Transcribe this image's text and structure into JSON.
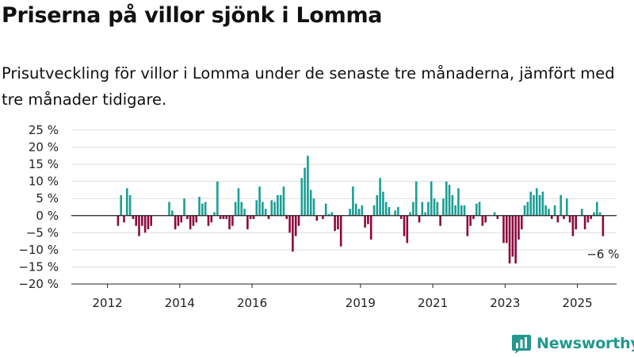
{
  "title": "Priserna på villor sjönk i Lomma",
  "subtitle": "Prisutveckling för villor i Lomma under de senaste tre månaderna, jämfört med tre månader tidigare.",
  "brand": {
    "name": "Newsworthy",
    "icon": "newsworthy-logo-icon"
  },
  "colors": {
    "positive": "#1a9e95",
    "negative": "#8c0a3d",
    "grid": "#dddddd",
    "axis": "#222222",
    "brand": "#21998f"
  },
  "chart_data": {
    "type": "bar",
    "x_start": "2011-01",
    "x_end": "2026-02",
    "ylim": [
      -20,
      25
    ],
    "y_ticks": [
      25,
      20,
      15,
      10,
      5,
      0,
      -5,
      -10,
      -15,
      -20
    ],
    "y_tick_labels": [
      "25 %",
      "20 %",
      "15 %",
      "10 %",
      "5 %",
      "0 %",
      "−5 %",
      "−10 %",
      "−15 %",
      "−20 %"
    ],
    "x_ticks": [
      "2012",
      "2014",
      "2016",
      "2019",
      "2021",
      "2023",
      "2025"
    ],
    "grid": true,
    "annotation": {
      "text": "−6 %",
      "x": "2025-09",
      "y": -6
    },
    "series": [
      {
        "values": [
          [
            "2012-04",
            -3
          ],
          [
            "2012-05",
            6
          ],
          [
            "2012-06",
            -2
          ],
          [
            "2012-07",
            8
          ],
          [
            "2012-08",
            6
          ],
          [
            "2012-09",
            -1
          ],
          [
            "2012-10",
            -3
          ],
          [
            "2012-11",
            -6
          ],
          [
            "2012-12",
            -3
          ],
          [
            "2013-01",
            -5
          ],
          [
            "2013-02",
            -4
          ],
          [
            "2013-03",
            -3
          ],
          [
            "2013-09",
            4
          ],
          [
            "2013-10",
            1.5
          ],
          [
            "2013-11",
            -4
          ],
          [
            "2013-12",
            -3
          ],
          [
            "2014-01",
            -2
          ],
          [
            "2014-02",
            5
          ],
          [
            "2014-03",
            -1
          ],
          [
            "2014-04",
            -4
          ],
          [
            "2014-05",
            -3
          ],
          [
            "2014-06",
            -2
          ],
          [
            "2014-07",
            5.5
          ],
          [
            "2014-08",
            3.5
          ],
          [
            "2014-09",
            4
          ],
          [
            "2014-10",
            -3
          ],
          [
            "2014-11",
            -2
          ],
          [
            "2014-12",
            1
          ],
          [
            "2015-01",
            10
          ],
          [
            "2015-02",
            -1
          ],
          [
            "2015-03",
            -1
          ],
          [
            "2015-04",
            -1
          ],
          [
            "2015-05",
            -4
          ],
          [
            "2015-06",
            -3
          ],
          [
            "2015-07",
            4
          ],
          [
            "2015-08",
            8
          ],
          [
            "2015-09",
            4
          ],
          [
            "2015-10",
            2
          ],
          [
            "2015-11",
            -4
          ],
          [
            "2015-12",
            -1
          ],
          [
            "2016-01",
            -1
          ],
          [
            "2016-02",
            4.5
          ],
          [
            "2016-03",
            8.5
          ],
          [
            "2016-04",
            4
          ],
          [
            "2016-05",
            2
          ],
          [
            "2016-06",
            -1
          ],
          [
            "2016-07",
            4.5
          ],
          [
            "2016-08",
            4
          ],
          [
            "2016-09",
            6
          ],
          [
            "2016-10",
            6
          ],
          [
            "2016-11",
            8.5
          ],
          [
            "2016-12",
            -1
          ],
          [
            "2017-01",
            -5
          ],
          [
            "2017-02",
            -10.5
          ],
          [
            "2017-03",
            -6
          ],
          [
            "2017-04",
            -3
          ],
          [
            "2017-05",
            11
          ],
          [
            "2017-06",
            14
          ],
          [
            "2017-07",
            17.5
          ],
          [
            "2017-08",
            7.5
          ],
          [
            "2017-09",
            5
          ],
          [
            "2017-10",
            -1.5
          ],
          [
            "2017-12",
            -1
          ],
          [
            "2018-01",
            3.5
          ],
          [
            "2018-02",
            0.5
          ],
          [
            "2018-03",
            1
          ],
          [
            "2018-04",
            -4.5
          ],
          [
            "2018-05",
            -4
          ],
          [
            "2018-06",
            -9
          ],
          [
            "2018-09",
            2
          ],
          [
            "2018-10",
            8.5
          ],
          [
            "2018-11",
            3.5
          ],
          [
            "2018-12",
            2
          ],
          [
            "2019-01",
            3
          ],
          [
            "2019-02",
            -3.5
          ],
          [
            "2019-03",
            -2.5
          ],
          [
            "2019-04",
            -7
          ],
          [
            "2019-05",
            3
          ],
          [
            "2019-06",
            6
          ],
          [
            "2019-07",
            11
          ],
          [
            "2019-08",
            7
          ],
          [
            "2019-09",
            4
          ],
          [
            "2019-10",
            2.5
          ],
          [
            "2019-12",
            1.5
          ],
          [
            "2020-01",
            2.5
          ],
          [
            "2020-02",
            -1
          ],
          [
            "2020-03",
            -6
          ],
          [
            "2020-04",
            -8
          ],
          [
            "2020-05",
            1
          ],
          [
            "2020-06",
            4
          ],
          [
            "2020-07",
            10
          ],
          [
            "2020-08",
            -2
          ],
          [
            "2020-09",
            4
          ],
          [
            "2020-10",
            1
          ],
          [
            "2020-11",
            4
          ],
          [
            "2020-12",
            10
          ],
          [
            "2021-01",
            5
          ],
          [
            "2021-02",
            4
          ],
          [
            "2021-03",
            -3
          ],
          [
            "2021-04",
            5
          ],
          [
            "2021-05",
            10
          ],
          [
            "2021-06",
            9
          ],
          [
            "2021-07",
            6
          ],
          [
            "2021-08",
            3
          ],
          [
            "2021-09",
            8
          ],
          [
            "2021-10",
            3
          ],
          [
            "2021-11",
            3
          ],
          [
            "2021-12",
            -6
          ],
          [
            "2022-01",
            -3
          ],
          [
            "2022-02",
            -1
          ],
          [
            "2022-03",
            3.5
          ],
          [
            "2022-04",
            4
          ],
          [
            "2022-05",
            -3
          ],
          [
            "2022-06",
            -2
          ],
          [
            "2022-09",
            1
          ],
          [
            "2022-10",
            -1
          ],
          [
            "2022-12",
            -8
          ],
          [
            "2023-01",
            -8
          ],
          [
            "2023-02",
            -14
          ],
          [
            "2023-03",
            -12
          ],
          [
            "2023-04",
            -14
          ],
          [
            "2023-05",
            -7
          ],
          [
            "2023-06",
            -4
          ],
          [
            "2023-07",
            3
          ],
          [
            "2023-08",
            4
          ],
          [
            "2023-09",
            7
          ],
          [
            "2023-10",
            6
          ],
          [
            "2023-11",
            8
          ],
          [
            "2023-12",
            6
          ],
          [
            "2024-01",
            7
          ],
          [
            "2024-02",
            3
          ],
          [
            "2024-03",
            2
          ],
          [
            "2024-04",
            -1
          ],
          [
            "2024-05",
            3
          ],
          [
            "2024-06",
            -2
          ],
          [
            "2024-07",
            6
          ],
          [
            "2024-08",
            -1
          ],
          [
            "2024-09",
            5
          ],
          [
            "2024-10",
            -2
          ],
          [
            "2024-11",
            -6
          ],
          [
            "2024-12",
            -4
          ],
          [
            "2025-02",
            2
          ],
          [
            "2025-03",
            -4
          ],
          [
            "2025-04",
            -2
          ],
          [
            "2025-05",
            -1
          ],
          [
            "2025-06",
            1
          ],
          [
            "2025-07",
            4
          ],
          [
            "2025-08",
            1
          ],
          [
            "2025-09",
            -6
          ]
        ]
      }
    ]
  }
}
